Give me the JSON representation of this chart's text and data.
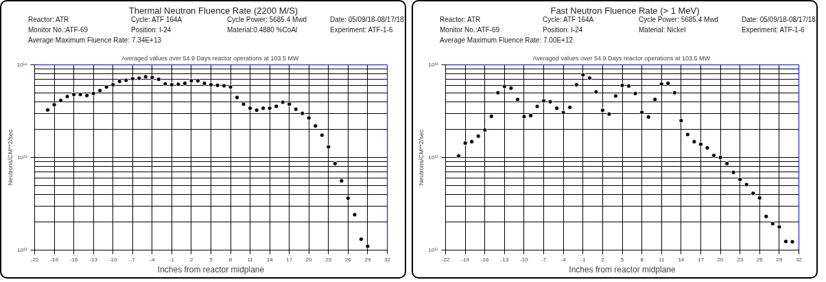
{
  "chart_data": [
    {
      "type": "scatter",
      "title": "Thermal Neutron Fluence Rate (2200 M/S)",
      "subtitle": "Averaged values over  54.9 Days reactor operations at 103.5 MW",
      "annotations": [
        "Reactor: ATR",
        "Cycle: ATF 164A",
        "Cycle Power:  5685.4 Mwd",
        "Date: 05/09/18-08/17/18",
        "Monitor No.:ATF-69",
        "Position: I-24",
        "Material:0.4880 %CoAl",
        "Experiment: ATF-1-6",
        "Average Maximum Fluence Rate: 7.34E+13"
      ],
      "xlabel": "Inches from reactor midplane",
      "ylabel": "Neutrons/CM**2/sec",
      "log": "y",
      "grid": true,
      "marker": "circle",
      "xlim": [
        -22,
        32
      ],
      "xticks": [
        -22,
        -19,
        -16,
        -13,
        -10,
        -7,
        -4,
        -1,
        2,
        5,
        8,
        11,
        14,
        17,
        20,
        23,
        26,
        29,
        32
      ],
      "ylim": [
        1000000000000.0,
        100000000000000.0
      ],
      "yticks": [
        {
          "value": 1000000000000.0,
          "label": "10¹²"
        },
        {
          "value": 10000000000000.0,
          "label": "10¹³"
        },
        {
          "value": 100000000000000.0,
          "label": "10¹⁴"
        }
      ],
      "x": [
        -20,
        -19,
        -18,
        -17,
        -16,
        -15,
        -14,
        -13,
        -12,
        -11,
        -10,
        -9,
        -8,
        -7,
        -6,
        -5,
        -4,
        -3,
        -2,
        -1,
        0,
        1,
        2,
        3,
        4,
        5,
        6,
        7,
        8,
        9,
        10,
        11,
        12,
        13,
        14,
        15,
        16,
        17,
        18,
        19,
        20,
        21,
        22,
        23,
        24,
        25,
        26,
        27,
        28,
        29
      ],
      "series": [
        {
          "color": "#000000",
          "values": [
            32600000000000.0,
            37100000000000.0,
            41200000000000.0,
            45500000000000.0,
            47900000000000.0,
            47900000000000.0,
            46700000000000.0,
            49000000000000.0,
            52800000000000.0,
            57600000000000.0,
            60900000000000.0,
            66400000000000.0,
            68100000000000.0,
            70700000000000.0,
            71600000000000.0,
            74300000000000.0,
            73300000000000.0,
            69800000000000.0,
            62400000000000.0,
            60900000000000.0,
            61700000000000.0,
            63200000000000.0,
            67300000000000.0,
            67300000000000.0,
            63200000000000.0,
            60900000000000.0,
            60100000000000.0,
            59400000000000.0,
            57600000000000.0,
            44400000000000.0,
            37600000000000.0,
            34000000000000.0,
            32400000000000.0,
            34000000000000.0,
            34000000000000.0,
            35700000000000.0,
            39500000000000.0,
            37600000000000.0,
            33200000000000.0,
            29900000000000.0,
            26700000000000.0,
            21900000000000.0,
            17400000000000.0,
            13000000000000.0,
            8600000000000.0,
            5600000000000.0,
            3630000000000.0,
            2410000000000.0,
            1310000000000.0,
            1100000000000.0
          ]
        }
      ]
    },
    {
      "type": "scatter",
      "title": "Fast Neutron Fluence Rate (> 1 MeV)",
      "subtitle": "Averaged values over  54.9 Days reactor operations at 103.5 MW",
      "annotations": [
        "Reactor: ATR",
        "Cycle: ATF 164A",
        "Cycle Power:  5685.4 Mwd",
        "Date: 05/09/18-08/17/18",
        "Monitor No.:ATF-69",
        "Position: I-24",
        "Material: Nickel",
        "Experiment: ATF-1-6",
        "Average Maximum Fluence Rate: 7.00E+12"
      ],
      "xlabel": "Inches from reactor midplane",
      "ylabel": "Neutrons/CM**2/sec",
      "log": "y",
      "grid": true,
      "marker": "circle",
      "xlim": [
        -22,
        32
      ],
      "xticks": [
        -22,
        -19,
        -16,
        -13,
        -10,
        -7,
        -4,
        -1,
        2,
        5,
        8,
        11,
        14,
        17,
        20,
        23,
        26,
        29,
        32
      ],
      "ylim": [
        100000000000.0,
        10000000000000.0
      ],
      "yticks": [
        {
          "value": 100000000000.0,
          "label": "10¹¹"
        },
        {
          "value": 1000000000000.0,
          "label": "10¹²"
        },
        {
          "value": 10000000000000.0,
          "label": "10¹³"
        }
      ],
      "x": [
        -20,
        -19,
        -18,
        -17,
        -16,
        -15,
        -14,
        -13,
        -12,
        -11,
        -10,
        -9,
        -8,
        -7,
        -6,
        -5,
        -4,
        -3,
        -2,
        -1,
        0,
        1,
        2,
        3,
        4,
        5,
        6,
        7,
        8,
        9,
        10,
        11,
        12,
        13,
        14,
        15,
        16,
        17,
        18,
        19,
        20,
        21,
        22,
        23,
        24,
        25,
        26,
        27,
        28,
        29,
        30,
        31
      ],
      "series": [
        {
          "color": "#000000",
          "values": [
            1040000000000.0,
            1430000000000.0,
            1480000000000.0,
            1700000000000.0,
            1980000000000.0,
            2780000000000.0,
            5000000000000.0,
            5850000000000.0,
            5600000000000.0,
            4230000000000.0,
            2760000000000.0,
            2830000000000.0,
            3560000000000.0,
            4090000000000.0,
            3990000000000.0,
            3400000000000.0,
            3050000000000.0,
            3480000000000.0,
            6100000000000.0,
            7800000000000.0,
            7200000000000.0,
            5100000000000.0,
            3230000000000.0,
            2940000000000.0,
            4610000000000.0,
            6000000000000.0,
            5900000000000.0,
            4900000000000.0,
            3070000000000.0,
            2730000000000.0,
            4230000000000.0,
            6200000000000.0,
            6300000000000.0,
            5000000000000.0,
            2500000000000.0,
            1770000000000.0,
            1480000000000.0,
            1390000000000.0,
            1270000000000.0,
            1050000000000.0,
            1000000000000.0,
            860000000000.0,
            690000000000.0,
            580000000000.0,
            510000000000.0,
            410000000000.0,
            365000000000.0,
            231000000000.0,
            193000000000.0,
            178000000000.0,
            124000000000.0,
            123000000000.0
          ]
        }
      ]
    }
  ]
}
